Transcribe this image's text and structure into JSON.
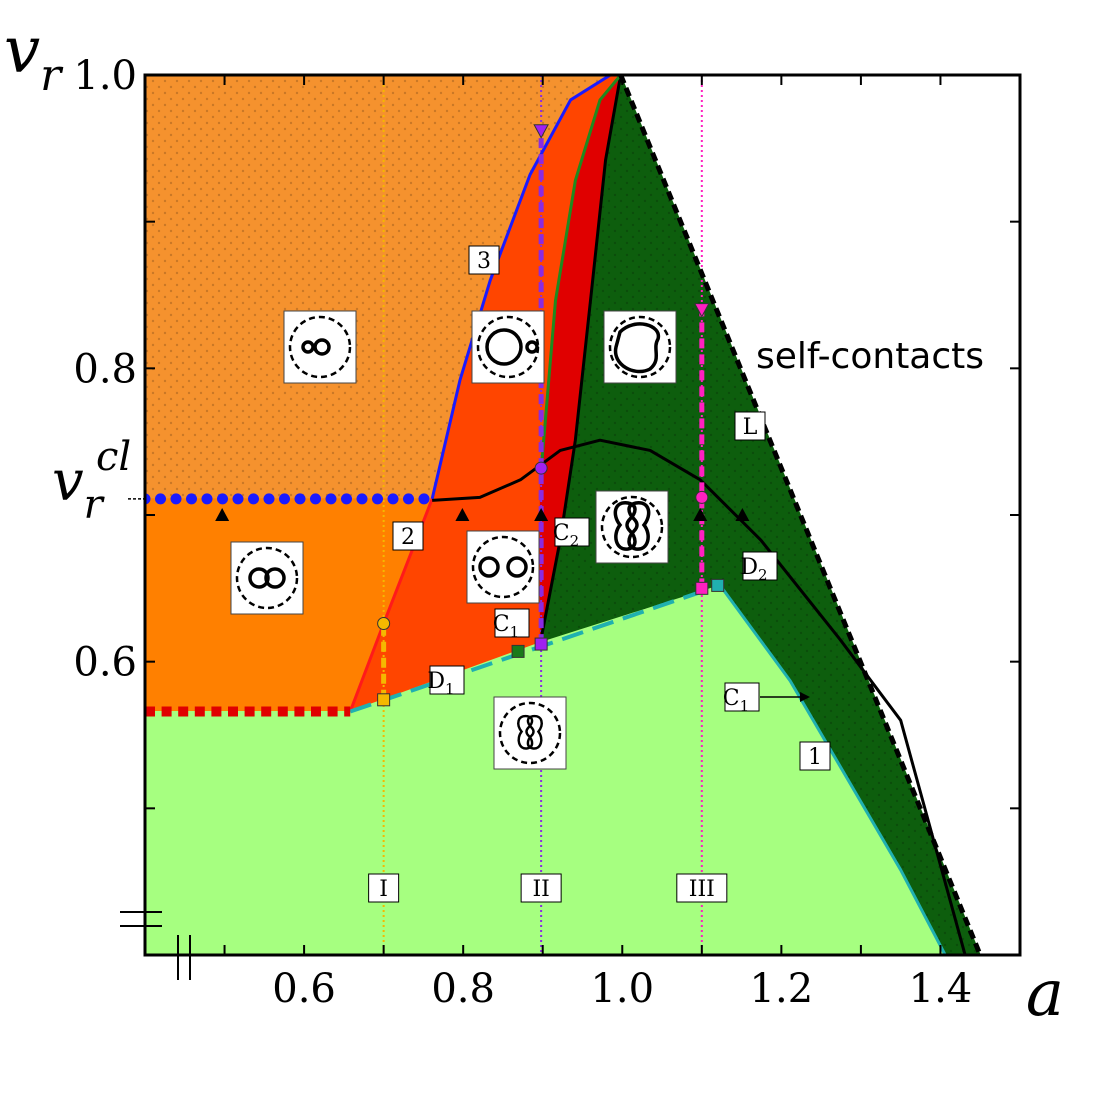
{
  "chart_data": {
    "type": "phase-diagram",
    "x_label": "a",
    "y_label": {
      "base": "v",
      "sub": "r"
    },
    "xlim": [
      0.4,
      1.5
    ],
    "ylim": [
      0.4,
      1.0
    ],
    "xticks": [
      0.6,
      0.8,
      {
        "value": 1,
        "label": "1.0"
      },
      1.2,
      1.4
    ],
    "yticks": [
      0.6,
      0.8,
      {
        "value": 1,
        "label": "1.0"
      }
    ],
    "xminorticks": [
      0.5,
      0.7,
      0.9,
      1.1,
      1.3
    ],
    "yminorticks": [
      0.5,
      0.7,
      0.9
    ],
    "v_cl": {
      "base": "v",
      "sub": "r",
      "sup": "cl",
      "value": 0.711
    },
    "regions": [
      {
        "color": "#f5922e",
        "dotted": true,
        "x": [
          0.4,
          0.985,
          0.935,
          0.884,
          0.834,
          0.796,
          0.761,
          0.4
        ],
        "y": [
          1.0,
          1.0,
          0.983,
          0.932,
          0.86,
          0.792,
          0.711,
          0.711
        ]
      },
      {
        "color": "#ff8000",
        "dotted": false,
        "x": [
          0.4,
          0.761,
          0.658,
          0.4
        ],
        "y": [
          0.711,
          0.711,
          0.566,
          0.566
        ]
      },
      {
        "color": "#ff4500",
        "dotted": false,
        "x": [
          0.658,
          0.761,
          0.796,
          0.834,
          0.884,
          0.935,
          0.985,
          0.998,
          0.979,
          0.96,
          0.941,
          0.922,
          0.897
        ],
        "y": [
          0.566,
          0.711,
          0.792,
          0.86,
          0.932,
          0.983,
          1.0,
          1.0,
          0.942,
          0.846,
          0.751,
          0.683,
          0.613
        ]
      },
      {
        "color": "#e00000",
        "dotted": false,
        "x": [
          0.897,
          0.916,
          0.941,
          0.972,
          0.998,
          0.979,
          0.96,
          0.941,
          0.922,
          0.897
        ],
        "y": [
          0.724,
          0.846,
          0.928,
          0.983,
          1.0,
          0.942,
          0.846,
          0.751,
          0.683,
          0.613
        ]
      },
      {
        "color": "#0d5e0d",
        "dotted": true,
        "x": [
          0.998,
          1.45,
          1.406,
          1.35,
          1.211,
          1.123,
          0.897,
          0.922,
          0.941,
          0.96,
          0.979
        ],
        "y": [
          1.0,
          0.4,
          0.4,
          0.458,
          0.587,
          0.652,
          0.613,
          0.683,
          0.751,
          0.846,
          0.942
        ]
      },
      {
        "color": "#a6ff80",
        "dotted": false,
        "x": [
          0.4,
          0.658,
          0.897,
          1.123,
          1.211,
          1.35,
          1.406,
          0.4
        ],
        "y": [
          0.566,
          0.566,
          0.613,
          0.652,
          0.587,
          0.458,
          0.4,
          0.4
        ]
      }
    ],
    "curves": [
      {
        "color": "#1a1aff",
        "style": "solid",
        "x": [
          0.761,
          0.796,
          0.834,
          0.884,
          0.935,
          0.985,
          0.998
        ],
        "y": [
          0.711,
          0.792,
          0.86,
          0.932,
          0.983,
          1.0,
          1.0
        ]
      },
      {
        "color": "#ff1a1a",
        "style": "solid",
        "x": [
          0.658,
          0.7,
          0.761
        ],
        "y": [
          0.566,
          0.626,
          0.711
        ]
      },
      {
        "color": "#000000",
        "style": "solid",
        "x": [
          0.761,
          0.821,
          0.872,
          0.922,
          0.972,
          1.035,
          1.098,
          1.174,
          1.274,
          1.35,
          1.431
        ],
        "y": [
          0.71,
          0.712,
          0.724,
          0.744,
          0.751,
          0.744,
          0.724,
          0.683,
          0.615,
          0.56,
          0.4
        ]
      },
      {
        "color": "#000000",
        "style": "solid",
        "x": [
          0.897,
          0.922,
          0.941,
          0.96,
          0.979,
          0.998
        ],
        "y": [
          0.613,
          0.683,
          0.751,
          0.846,
          0.942,
          1.0
        ]
      },
      {
        "color": "#1f8a1f",
        "style": "solid",
        "x": [
          0.897,
          0.916,
          0.941,
          0.972,
          0.998
        ],
        "y": [
          0.724,
          0.846,
          0.928,
          0.983,
          1.0
        ]
      },
      {
        "color": "#20b0b0",
        "style": "solid",
        "x": [
          1.123,
          1.211,
          1.35,
          1.406
        ],
        "y": [
          0.652,
          0.587,
          0.458,
          0.4
        ]
      },
      {
        "color": "#20b0b0",
        "style": "dashed",
        "x": [
          0.658,
          1.123
        ],
        "y": [
          0.566,
          0.652
        ]
      },
      {
        "color": "#000000",
        "style": "thick-dashed",
        "x": [
          0.998,
          1.45
        ],
        "y": [
          1.0,
          0.4
        ]
      },
      {
        "color": "#1a1aff",
        "style": "dots",
        "x": [
          0.4,
          0.761
        ],
        "y": [
          0.711,
          0.711
        ]
      },
      {
        "color": "#e00000",
        "style": "squares",
        "x": [
          0.4,
          0.658
        ],
        "y": [
          0.566,
          0.566
        ]
      }
    ],
    "verticals": [
      {
        "x": 0.7,
        "color": "#f5b800",
        "label": "I",
        "dash_from": 0.574,
        "dash_to": 0.626
      },
      {
        "x": 0.898,
        "color": "#8a2be2",
        "label": "II",
        "dash_from": 0.612,
        "dash_to": 0.962
      },
      {
        "x": 1.1,
        "color": "#ff20c0",
        "label": "III",
        "dash_from": 0.65,
        "dash_to": 0.84
      }
    ],
    "markers": [
      {
        "shape": "circle",
        "color": "#f5b800",
        "x": [
          0.7
        ],
        "y": [
          0.626
        ]
      },
      {
        "shape": "square",
        "color": "#f5b800",
        "x": [
          0.7
        ],
        "y": [
          0.574
        ]
      },
      {
        "shape": "triangle-down",
        "color": "#a020f0",
        "x": [
          0.898
        ],
        "y": [
          0.962
        ]
      },
      {
        "shape": "circle",
        "color": "#a020f0",
        "x": [
          0.898
        ],
        "y": [
          0.732
        ]
      },
      {
        "shape": "square",
        "color": "#a020f0",
        "x": [
          0.898
        ],
        "y": [
          0.612
        ]
      },
      {
        "shape": "triangle-down",
        "color": "#ff20c0",
        "x": [
          1.1
        ],
        "y": [
          0.84
        ]
      },
      {
        "shape": "circle",
        "color": "#ff20c0",
        "x": [
          1.1
        ],
        "y": [
          0.712
        ]
      },
      {
        "shape": "square",
        "color": "#ff20c0",
        "x": [
          1.1
        ],
        "y": [
          0.65
        ]
      },
      {
        "shape": "square",
        "color": "#20b0b0",
        "x": [
          1.12
        ],
        "y": [
          0.652
        ]
      },
      {
        "shape": "square",
        "color": "#1a7a1a",
        "x": [
          0.869
        ],
        "y": [
          0.607
        ]
      },
      {
        "shape": "triangle-up",
        "color": "#000000",
        "x": [
          0.497,
          0.799,
          0.898,
          1.098,
          1.151
        ],
        "y": [
          0.7,
          0.7,
          0.7,
          0.7,
          0.7
        ]
      }
    ],
    "labels": [
      {
        "text": "3"
      },
      {
        "text": "2"
      },
      {
        "text": "C",
        "sub": "2"
      },
      {
        "text": "C",
        "sub": "1"
      },
      {
        "text": "D",
        "sub": "1"
      },
      {
        "text": "D",
        "sub": "2"
      },
      {
        "text": "L"
      },
      {
        "text": "C",
        "sub": "1"
      },
      {
        "text": "1"
      }
    ],
    "annotation": "self-contacts"
  }
}
